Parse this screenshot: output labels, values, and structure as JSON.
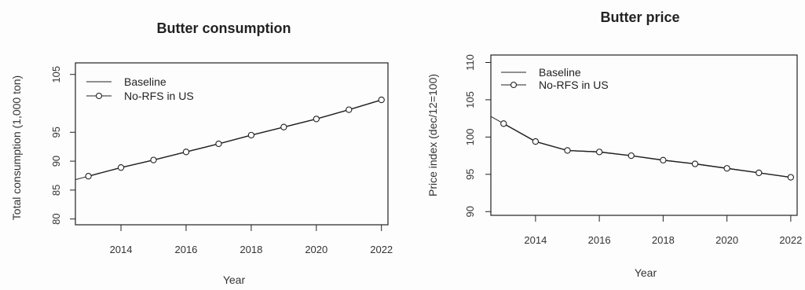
{
  "chart_data": [
    {
      "type": "line",
      "title": "Butter consumption",
      "xlabel": "Year",
      "ylabel": "Total consumption (1,000 ton)",
      "xlim": [
        2012.6,
        2022.2
      ],
      "ylim": [
        79,
        107
      ],
      "xticks": [
        2014,
        2016,
        2018,
        2020,
        2022
      ],
      "yticks": [
        80,
        85,
        90,
        95,
        105
      ],
      "legend_position": "top-left",
      "x": [
        2013,
        2014,
        2015,
        2016,
        2017,
        2018,
        2019,
        2020,
        2021,
        2022
      ],
      "series": [
        {
          "name": "Baseline",
          "marker": "none",
          "values": [
            87.4,
            88.9,
            90.2,
            91.6,
            93.0,
            94.5,
            95.9,
            97.3,
            98.9,
            100.6
          ]
        },
        {
          "name": "No-RFS in US",
          "marker": "circle",
          "values": [
            87.4,
            88.9,
            90.2,
            91.6,
            93.0,
            94.5,
            95.9,
            97.3,
            98.9,
            100.6
          ]
        }
      ]
    },
    {
      "type": "line",
      "title": "Butter price",
      "xlabel": "Year",
      "ylabel": "Price index (dec/12=100)",
      "xlim": [
        2012.6,
        2022.2
      ],
      "ylim": [
        89.5,
        111
      ],
      "xticks": [
        2014,
        2016,
        2018,
        2020,
        2022
      ],
      "yticks": [
        90,
        95,
        100,
        105,
        110
      ],
      "legend_position": "top-left",
      "x": [
        2013,
        2014,
        2015,
        2016,
        2017,
        2018,
        2019,
        2020,
        2021,
        2022
      ],
      "series": [
        {
          "name": "Baseline",
          "marker": "none",
          "values": [
            101.8,
            99.4,
            98.2,
            98.0,
            97.5,
            96.9,
            96.4,
            95.8,
            95.2,
            94.6
          ]
        },
        {
          "name": "No-RFS in US",
          "marker": "circle",
          "values": [
            101.8,
            99.4,
            98.2,
            98.0,
            97.5,
            96.9,
            96.4,
            95.8,
            95.2,
            94.6
          ]
        }
      ]
    }
  ]
}
